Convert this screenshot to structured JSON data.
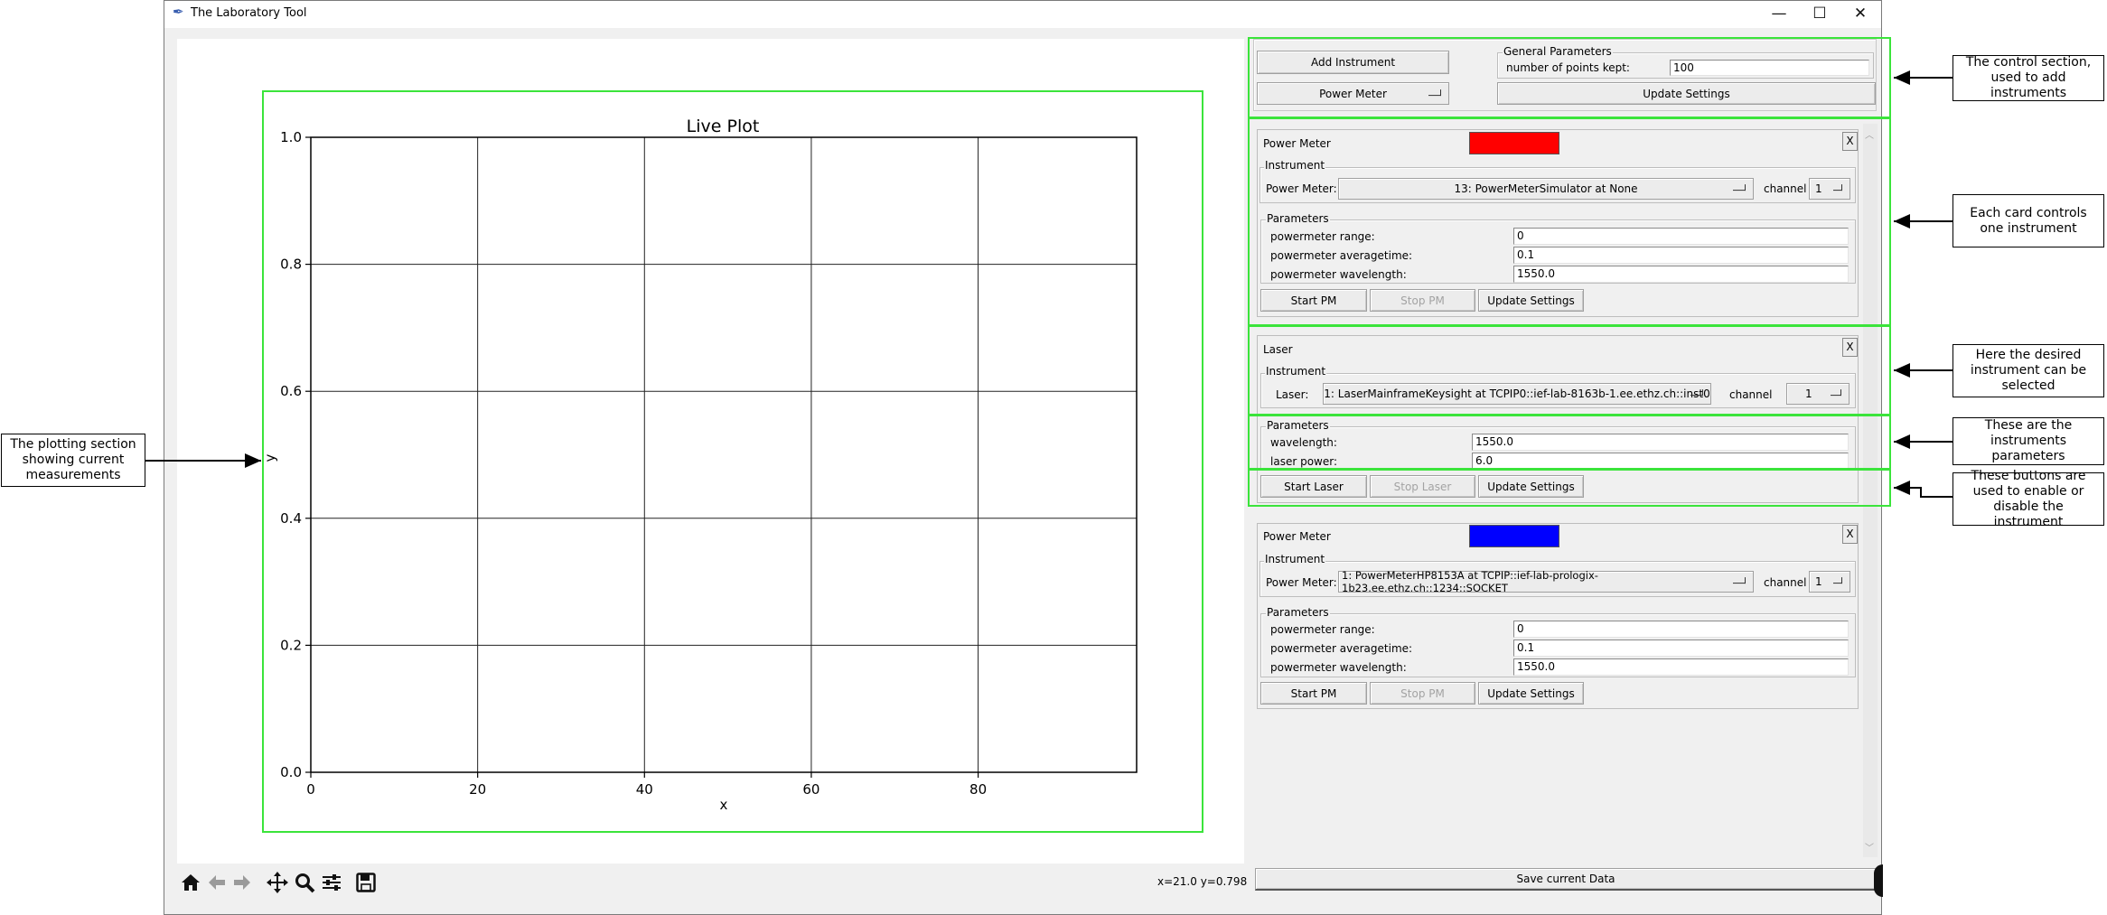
{
  "window": {
    "title": "The Laboratory Tool",
    "controls": {
      "minimize": "—",
      "maximize": "☐",
      "close": "✕"
    }
  },
  "plot": {
    "coord_readout": "x=21.0 y=0.798"
  },
  "chart_data": {
    "type": "line",
    "title": "Live Plot",
    "xlabel": "x",
    "ylabel": "y",
    "xlim": [
      0,
      99
    ],
    "ylim": [
      0.0,
      1.0
    ],
    "xticks": [
      0,
      20,
      40,
      60,
      80
    ],
    "xtick_labels": [
      "0",
      "20",
      "40",
      "60",
      "80"
    ],
    "yticks": [
      0.0,
      0.2,
      0.4,
      0.6,
      0.8,
      1.0
    ],
    "ytick_labels": [
      "0.0",
      "0.2",
      "0.4",
      "0.6",
      "0.8",
      "1.0"
    ],
    "grid": true,
    "series": []
  },
  "toolbar": {
    "icons": [
      "home-icon",
      "back-arrow-icon",
      "forward-arrow-icon",
      "pan-icon",
      "zoom-icon",
      "configure-subplots-icon",
      "save-icon"
    ]
  },
  "control": {
    "add_instrument": "Add Instrument",
    "instrument_type": "Power Meter",
    "general_title": "General Parameters",
    "points_label": "number of points kept:",
    "points_value": "100",
    "update_settings": "Update Settings"
  },
  "cards": {
    "pm1": {
      "title": "Power Meter",
      "color": "#ff0000",
      "close": "X",
      "instrument_title": "Instrument",
      "device_label": "Power Meter:",
      "device_value": "13: PowerMeterSimulator at None",
      "channel_label": "channel",
      "channel_value": "1",
      "params_title": "Parameters",
      "p1_label": "powermeter range:",
      "p1_value": "0",
      "p2_label": "powermeter averagetime:",
      "p2_value": "0.1",
      "p3_label": "powermeter wavelength:",
      "p3_value": "1550.0",
      "start": "Start PM",
      "stop": "Stop PM",
      "update": "Update Settings"
    },
    "laser": {
      "title": "Laser",
      "close": "X",
      "instrument_title": "Instrument",
      "device_label": "Laser:",
      "device_value": "1: LaserMainframeKeysight at TCPIP0::ief-lab-8163b-1.ee.ethz.ch::inst0",
      "channel_label": "channel",
      "channel_value": "1",
      "params_title": "Parameters",
      "p1_label": "wavelength:",
      "p1_value": "1550.0",
      "p2_label": "laser power:",
      "p2_value": "6.0",
      "start": "Start Laser",
      "stop": "Stop Laser",
      "update": "Update Settings"
    },
    "pm2": {
      "title": "Power Meter",
      "color": "#0000ff",
      "close": "X",
      "instrument_title": "Instrument",
      "device_label": "Power Meter:",
      "device_value": "1: PowerMeterHP8153A at TCPIP::ief-lab-prologix-1b23.ee.ethz.ch::1234::SOCKET",
      "channel_label": "channel",
      "channel_value": "1",
      "params_title": "Parameters",
      "p1_label": "powermeter range:",
      "p1_value": "0",
      "p2_label": "powermeter averagetime:",
      "p2_value": "0.1",
      "p3_label": "powermeter wavelength:",
      "p3_value": "1550.0",
      "start": "Start PM",
      "stop": "Stop PM",
      "update": "Update Settings"
    }
  },
  "save_button": "Save current Data",
  "annotations": {
    "control": "The control section, used to add instruments",
    "card": "Each card controls one instrument",
    "instrument": "Here the desired instrument can be selected",
    "params": "These are the instruments parameters",
    "buttons": "These buttons are used to enable or disable the instrument",
    "plot": "The plotting section showing current measurements"
  },
  "colors": {
    "highlight": "#3be43b",
    "window_bg": "#f0f0f0"
  }
}
